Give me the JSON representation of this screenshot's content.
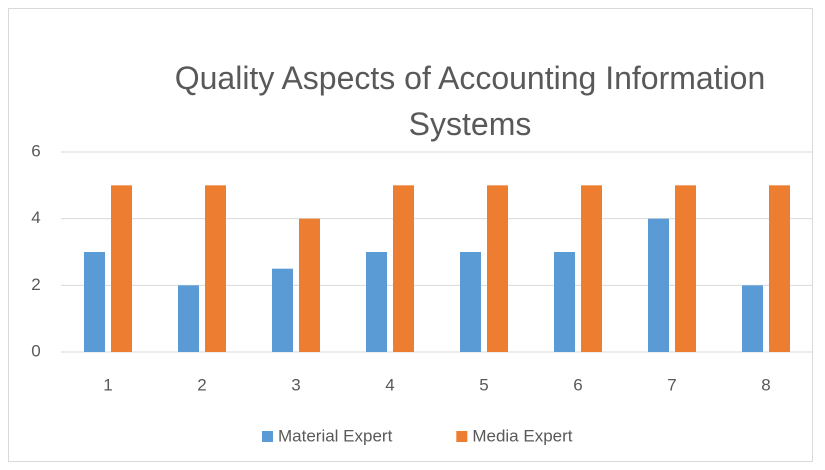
{
  "chart_data": {
    "type": "bar",
    "title": "Quality Aspects of Accounting Information Systems",
    "categories": [
      "1",
      "2",
      "3",
      "4",
      "5",
      "6",
      "7",
      "8"
    ],
    "series": [
      {
        "name": "Material Expert",
        "color": "#5b9bd5",
        "values": [
          3,
          2,
          2.5,
          3,
          3,
          3,
          4,
          2
        ]
      },
      {
        "name": "Media Expert",
        "color": "#ed7d31",
        "values": [
          5,
          5,
          4,
          5,
          5,
          5,
          5,
          5
        ]
      }
    ],
    "ylim": [
      0,
      6
    ],
    "yticks": [
      0,
      2,
      4,
      6
    ],
    "grid": true,
    "legend": "bottom"
  }
}
